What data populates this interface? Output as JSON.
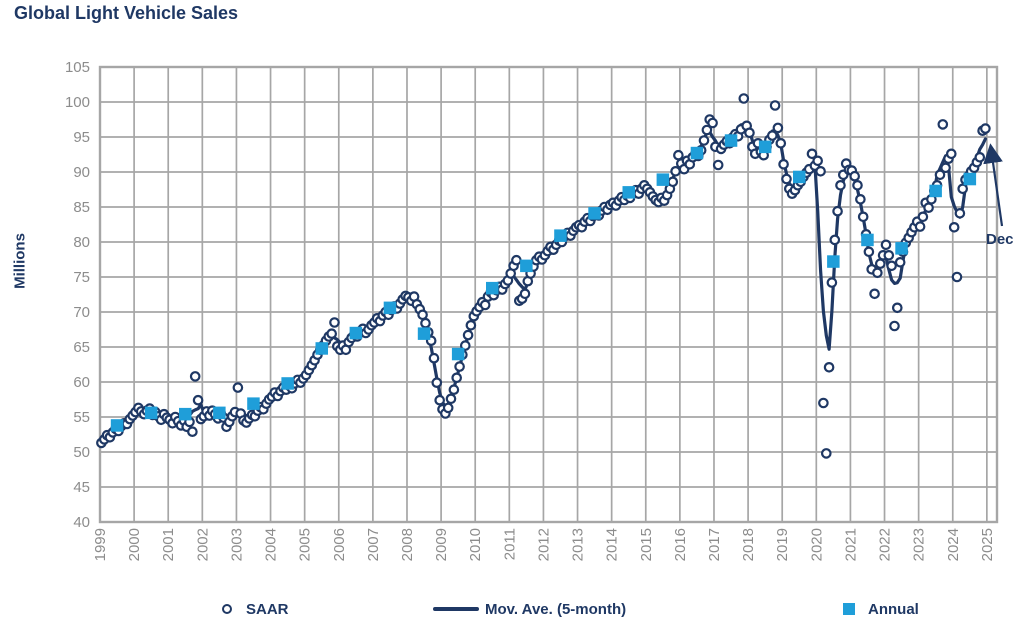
{
  "title": "Global Light Vehicle Sales",
  "colors": {
    "navy": "#1F3864",
    "light_blue": "#1F9ED9",
    "grid": "#A6A6A6",
    "tick_text": "#8C8C8C",
    "background": "#FFFFFF"
  },
  "legend": {
    "saar_label": "SAAR",
    "mov_ave_label": "Mov. Ave. (5-month)",
    "annual_label": "Annual"
  },
  "chart_data": {
    "type": "combo-scatter-line",
    "title": "Global Light Vehicle Sales",
    "ylabel": "Millions",
    "ylim": [
      40,
      105
    ],
    "y_ticks": [
      40,
      45,
      50,
      55,
      60,
      65,
      70,
      75,
      80,
      85,
      90,
      95,
      100,
      105
    ],
    "x_years": [
      1999,
      2000,
      2001,
      2002,
      2003,
      2004,
      2005,
      2006,
      2007,
      2008,
      2009,
      2010,
      2011,
      2012,
      2013,
      2014,
      2015,
      2016,
      2017,
      2018,
      2019,
      2020,
      2021,
      2022,
      2023,
      2024,
      2025
    ],
    "grid": true,
    "legend_position": "bottom",
    "saar": {
      "name": "SAAR",
      "type": "scatter",
      "marker": "open-circle",
      "start": "1999-01",
      "frequency": "monthly",
      "values": [
        51.3,
        51.8,
        52.4,
        52.1,
        52.8,
        53.3,
        53.0,
        53.7,
        54.1,
        54.0,
        54.7,
        55.2,
        55.7,
        56.3,
        55.8,
        55.4,
        55.9,
        56.2,
        55.3,
        55.7,
        55.1,
        54.6,
        55.4,
        54.9,
        54.6,
        54.1,
        55.0,
        54.4,
        53.8,
        54.5,
        53.6,
        54.3,
        52.9,
        60.8,
        57.4,
        54.7,
        55.1,
        55.8,
        55.2,
        55.9,
        55.4,
        54.8,
        55.5,
        54.9,
        53.6,
        54.3,
        55.1,
        55.7,
        59.2,
        55.5,
        54.5,
        54.2,
        54.8,
        55.3,
        55.1,
        55.9,
        56.4,
        56.1,
        56.9,
        57.5,
        57.9,
        58.5,
        58.0,
        58.7,
        59.2,
        58.9,
        59.5,
        59.1,
        59.8,
        60.3,
        59.9,
        60.5,
        61.0,
        61.7,
        62.4,
        63.1,
        63.9,
        64.6,
        65.2,
        65.9,
        66.5,
        66.9,
        68.5,
        65.1,
        64.6,
        65.2,
        64.6,
        65.7,
        66.3,
        66.8,
        66.5,
        67.2,
        67.6,
        67.0,
        67.5,
        68.1,
        68.5,
        69.1,
        68.7,
        69.5,
        70.0,
        69.6,
        70.3,
        70.8,
        70.5,
        71.2,
        71.8,
        72.3,
        72.1,
        71.6,
        72.2,
        71.1,
        70.4,
        69.6,
        68.4,
        67.1,
        65.9,
        63.4,
        59.9,
        57.4,
        56.1,
        55.5,
        56.3,
        57.6,
        58.9,
        60.6,
        62.2,
        63.9,
        65.2,
        66.7,
        68.1,
        69.4,
        70.1,
        70.7,
        71.4,
        71.0,
        72.2,
        72.8,
        72.4,
        73.1,
        73.6,
        73.2,
        74.0,
        74.5,
        75.5,
        76.6,
        77.4,
        71.6,
        71.9,
        72.6,
        74.4,
        75.5,
        76.5,
        77.4,
        77.9,
        77.5,
        78.1,
        78.7,
        79.3,
        78.9,
        79.6,
        80.2,
        80.0,
        80.8,
        81.3,
        80.9,
        81.6,
        82.1,
        82.4,
        82.1,
        82.9,
        83.4,
        83.0,
        83.7,
        84.1,
        83.8,
        84.5,
        85.0,
        84.6,
        85.3,
        85.6,
        85.2,
        85.9,
        86.4,
        86.0,
        86.6,
        86.3,
        87.0,
        87.4,
        86.9,
        87.6,
        88.1,
        87.6,
        87.1,
        86.5,
        86.0,
        85.7,
        86.3,
        85.9,
        86.7,
        87.6,
        88.6,
        90.1,
        92.4,
        91.2,
        90.4,
        91.6,
        91.1,
        92.1,
        92.6,
        92.3,
        93.1,
        94.5,
        96.0,
        97.5,
        97.0,
        93.6,
        91.0,
        93.3,
        93.9,
        94.4,
        94.1,
        94.9,
        95.4,
        95.1,
        96.1,
        100.5,
        96.6,
        95.6,
        93.6,
        92.6,
        94.1,
        92.9,
        92.4,
        93.6,
        94.6,
        95.2,
        99.5,
        96.3,
        94.1,
        91.1,
        89.0,
        87.6,
        86.9,
        87.4,
        88.1,
        88.6,
        89.3,
        89.9,
        90.4,
        92.6,
        90.9,
        91.6,
        90.1,
        57.0,
        49.8,
        62.1,
        74.2,
        80.3,
        84.4,
        88.1,
        89.6,
        91.2,
        90.3,
        90.2,
        89.4,
        88.1,
        86.1,
        83.6,
        81.1,
        78.6,
        76.1,
        72.6,
        75.6,
        76.9,
        78.1,
        79.6,
        78.1,
        76.6,
        68.0,
        70.6,
        77.1,
        78.6,
        79.9,
        80.6,
        81.4,
        82.1,
        82.9,
        82.2,
        83.6,
        85.6,
        84.9,
        86.1,
        87.3,
        88.1,
        89.6,
        96.8,
        90.6,
        91.9,
        92.6,
        82.1,
        75.0,
        84.1,
        87.6,
        88.9,
        89.4,
        90.1,
        90.6,
        91.4,
        92.1,
        95.9,
        96.2
      ]
    },
    "moving_average": {
      "name": "Mov. Ave. (5-month)",
      "type": "line",
      "window": 5,
      "derived_from": "saar",
      "note": "5-month centered moving average of the SAAR series"
    },
    "annual": {
      "name": "Annual",
      "type": "scatter",
      "marker": "square",
      "years": [
        1999,
        2000,
        2001,
        2002,
        2003,
        2004,
        2005,
        2006,
        2007,
        2008,
        2009,
        2010,
        2011,
        2012,
        2013,
        2014,
        2015,
        2016,
        2017,
        2018,
        2019,
        2020,
        2021,
        2022,
        2023,
        2024
      ],
      "values": [
        53.8,
        55.6,
        55.4,
        55.6,
        56.9,
        59.8,
        64.8,
        67.0,
        70.6,
        66.9,
        64.0,
        73.4,
        76.6,
        80.9,
        84.1,
        87.1,
        88.9,
        92.7,
        94.5,
        93.6,
        89.3,
        77.2,
        80.3,
        79.1,
        87.3,
        89.0
      ]
    },
    "annotation": {
      "text": "Dec",
      "points_to": "2024-12",
      "value_at_point": 96.2
    }
  }
}
